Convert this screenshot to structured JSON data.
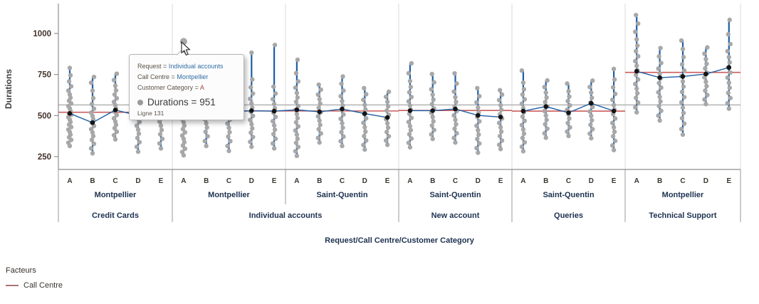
{
  "colors": {
    "point": "#a8a8a8",
    "mean_point": "#141414",
    "range_line": "#1e5fa5",
    "factor_line": "#cc5c5c",
    "overall_line": "#b3b3b3",
    "separator": "#dadada",
    "axis": "#8f8f8f",
    "tick_label": "#42322a",
    "group_label": "#1d3250",
    "legend_swatch": "#a87474"
  },
  "legend": {
    "title": "Facteurs",
    "items": [
      {
        "label": "Call Centre",
        "color": "#a87474"
      }
    ]
  },
  "tooltip": {
    "separator": "=",
    "lines": [
      {
        "label": "Request",
        "value": "Individual accounts"
      },
      {
        "label": "Call Centre",
        "value": "Montpellier"
      },
      {
        "label": "Customer Category",
        "value": "A"
      }
    ],
    "measure_label": "Durations",
    "measure_value": "951",
    "footer": "Ligne 131"
  },
  "hover": {
    "request": "Individual accounts",
    "centre": "Montpellier",
    "cat": "A",
    "value": 951
  },
  "chart_data": {
    "type": "variability-chart",
    "ylabel": "Durations",
    "xlabel": "Request/Call Centre/Customer Category",
    "y_ticks": [
      250,
      500,
      750,
      1000
    ],
    "ylim": [
      170,
      1180
    ],
    "overall_mean": 565,
    "factor_legend": "Call Centre",
    "groups": [
      {
        "request": "Credit Cards",
        "centres": [
          {
            "name": "Montpellier",
            "factor_mean": 520,
            "cells": [
              {
                "cat": "A",
                "mean": 513,
                "points": [
                  315,
                  335,
                  352,
                  368,
                  384,
                  400,
                  415,
                  430,
                  445,
                  460,
                  475,
                  490,
                  505,
                  513,
                  528,
                  543,
                  558,
                  574,
                  590,
                  608,
                  628,
                  652,
                  678,
                  708,
                  745,
                  790
                ]
              },
              {
                "cat": "B",
                "mean": 457,
                "points": [
                  270,
                  300,
                  328,
                  352,
                  375,
                  396,
                  417,
                  437,
                  457,
                  477,
                  497,
                  518,
                  542,
                  570,
                  606,
                  652,
                  700,
                  735
                ]
              },
              {
                "cat": "C",
                "mean": 534,
                "points": [
                  355,
                  380,
                  402,
                  423,
                  443,
                  463,
                  483,
                  503,
                  523,
                  543,
                  563,
                  583,
                  605,
                  628,
                  653,
                  682,
                  716,
                  755
                ]
              },
              {
                "cat": "D",
                "mean": 500,
                "points": [
                  280,
                  310,
                  338,
                  364,
                  390,
                  414,
                  438,
                  461,
                  483,
                  505,
                  528,
                  552,
                  580,
                  612,
                  652,
                  700
                ]
              },
              {
                "cat": "E",
                "mean": 508,
                "points": [
                  300,
                  330,
                  358,
                  386,
                  412,
                  438,
                  463,
                  488,
                  512,
                  536,
                  560,
                  585,
                  612,
                  640
                ]
              }
            ]
          }
        ]
      },
      {
        "request": "Individual accounts",
        "centres": [
          {
            "name": "Montpellier",
            "factor_mean": 528,
            "cells": [
              {
                "cat": "A",
                "mean": 520,
                "points": [
                  258,
                  278,
                  298,
                  318,
                  338,
                  358,
                  378,
                  398,
                  418,
                  438,
                  458,
                  478,
                  498,
                  518,
                  538,
                  558,
                  578,
                  600,
                  624,
                  650,
                  680,
                  951
                ]
              },
              {
                "cat": "B",
                "mean": 515,
                "points": [
                  315,
                  345,
                  374,
                  401,
                  427,
                  452,
                  477,
                  501,
                  525,
                  549,
                  574,
                  602,
                  636,
                  700
                ]
              },
              {
                "cat": "C",
                "mean": 522,
                "points": [
                  285,
                  315,
                  344,
                  372,
                  399,
                  425,
                  451,
                  477,
                  503,
                  528,
                  553,
                  580,
                  612,
                  650,
                  700,
                  780
                ]
              },
              {
                "cat": "D",
                "mean": 530,
                "points": [
                  310,
                  340,
                  369,
                  396,
                  422,
                  448,
                  473,
                  498,
                  523,
                  548,
                  574,
                  602,
                  634,
                  672,
                  720,
                  883
                ]
              },
              {
                "cat": "E",
                "mean": 527,
                "points": [
                  300,
                  330,
                  359,
                  387,
                  414,
                  440,
                  466,
                  492,
                  518,
                  544,
                  570,
                  600,
                  634,
                  676,
                  930
                ]
              }
            ]
          },
          {
            "name": "Saint-Quentin",
            "factor_mean": 528,
            "cells": [
              {
                "cat": "A",
                "mean": 535,
                "points": [
                  255,
                  283,
                  309,
                  334,
                  359,
                  384,
                  409,
                  434,
                  459,
                  484,
                  509,
                  534,
                  559,
                  584,
                  610,
                  638,
                  670,
                  708,
                  758,
                  840
                ]
              },
              {
                "cat": "B",
                "mean": 523,
                "points": [
                  336,
                  364,
                  391,
                  417,
                  443,
                  469,
                  495,
                  521,
                  547,
                  573,
                  600,
                  628,
                  658,
                  688
                ]
              },
              {
                "cat": "C",
                "mean": 540,
                "points": [
                  315,
                  344,
                  372,
                  399,
                  426,
                  453,
                  480,
                  507,
                  534,
                  561,
                  588,
                  618,
                  652,
                  694,
                  738
                ]
              },
              {
                "cat": "D",
                "mean": 512,
                "points": [
                  293,
                  321,
                  348,
                  375,
                  402,
                  429,
                  456,
                  483,
                  510,
                  537,
                  565,
                  596,
                  630,
                  667
                ]
              },
              {
                "cat": "E",
                "mean": 488,
                "points": [
                  322,
                  348,
                  374,
                  400,
                  426,
                  452,
                  478,
                  504,
                  530,
                  556,
                  584,
                  614,
                  645
                ]
              }
            ]
          }
        ]
      },
      {
        "request": "New account",
        "centres": [
          {
            "name": "Saint-Quentin",
            "factor_mean": 531,
            "cells": [
              {
                "cat": "A",
                "mean": 530,
                "points": [
                  307,
                  334,
                  360,
                  386,
                  411,
                  436,
                  461,
                  486,
                  511,
                  536,
                  561,
                  586,
                  613,
                  642,
                  674,
                  710,
                  758,
                  818
                ]
              },
              {
                "cat": "B",
                "mean": 530,
                "points": [
                  358,
                  385,
                  412,
                  439,
                  465,
                  491,
                  517,
                  543,
                  569,
                  597,
                  627,
                  660,
                  702,
                  753
                ]
              },
              {
                "cat": "C",
                "mean": 540,
                "points": [
                  336,
                  364,
                  392,
                  420,
                  447,
                  474,
                  501,
                  528,
                  555,
                  583,
                  612,
                  646,
                  695,
                  757
                ]
              },
              {
                "cat": "D",
                "mean": 501,
                "points": [
                  274,
                  302,
                  330,
                  357,
                  384,
                  411,
                  438,
                  465,
                  492,
                  519,
                  548,
                  580,
                  618,
                  667
                ]
              },
              {
                "cat": "E",
                "mean": 491,
                "points": [
                  296,
                  322,
                  348,
                  375,
                  402,
                  428,
                  455,
                  482,
                  508,
                  535,
                  563,
                  594,
                  628,
                  655
                ]
              }
            ]
          }
        ]
      },
      {
        "request": "Queries",
        "centres": [
          {
            "name": "Saint-Quentin",
            "factor_mean": 527,
            "cells": [
              {
                "cat": "A",
                "mean": 527,
                "points": [
                  283,
                  310,
                  337,
                  364,
                  390,
                  416,
                  442,
                  468,
                  494,
                  520,
                  546,
                  572,
                  599,
                  628,
                  660,
                  700,
                  774
                ]
              },
              {
                "cat": "B",
                "mean": 555,
                "points": [
                  365,
                  392,
                  420,
                  447,
                  474,
                  501,
                  528,
                  555,
                  582,
                  610,
                  640,
                  674,
                  714
                ]
              },
              {
                "cat": "C",
                "mean": 517,
                "points": [
                  376,
                  402,
                  428,
                  455,
                  482,
                  508,
                  535,
                  562,
                  588,
                  616,
                  648,
                  695
                ]
              },
              {
                "cat": "D",
                "mean": 575,
                "points": [
                  362,
                  390,
                  417,
                  444,
                  471,
                  498,
                  525,
                  552,
                  579,
                  608,
                  640,
                  674,
                  713
                ]
              },
              {
                "cat": "E",
                "mean": 528,
                "points": [
                  290,
                  318,
                  346,
                  374,
                  401,
                  428,
                  455,
                  482,
                  509,
                  536,
                  564,
                  596,
                  632,
                  672,
                  720,
                  784
                ]
              }
            ]
          }
        ]
      },
      {
        "request": "Technical Support",
        "centres": [
          {
            "name": "Montpellier",
            "factor_mean": 763,
            "cells": [
              {
                "cat": "A",
                "mean": 770,
                "points": [
                  520,
                  550,
                  579,
                  608,
                  636,
                  664,
                  692,
                  720,
                  748,
                  776,
                  804,
                  832,
                  861,
                  892,
                  926,
                  964,
                  1010,
                  1060,
                  1112
                ]
              },
              {
                "cat": "B",
                "mean": 731,
                "points": [
                  470,
                  500,
                  529,
                  558,
                  586,
                  614,
                  642,
                  670,
                  698,
                  726,
                  755,
                  786,
                  820,
                  860,
                  911
                ]
              },
              {
                "cat": "C",
                "mean": 738,
                "points": [
                  384,
                  418,
                  451,
                  484,
                  516,
                  548,
                  580,
                  612,
                  644,
                  676,
                  708,
                  740,
                  774,
                  812,
                  856,
                  905,
                  957
                ]
              },
              {
                "cat": "D",
                "mean": 753,
                "points": [
                  570,
                  598,
                  625,
                  652,
                  679,
                  706,
                  733,
                  760,
                  787,
                  815,
                  844,
                  877,
                  915
                ]
              },
              {
                "cat": "E",
                "mean": 793,
                "points": [
                  542,
                  575,
                  607,
                  638,
                  669,
                  700,
                  731,
                  762,
                  793,
                  824,
                  856,
                  892,
                  935,
                  995,
                  1083
                ]
              }
            ]
          }
        ]
      }
    ]
  }
}
